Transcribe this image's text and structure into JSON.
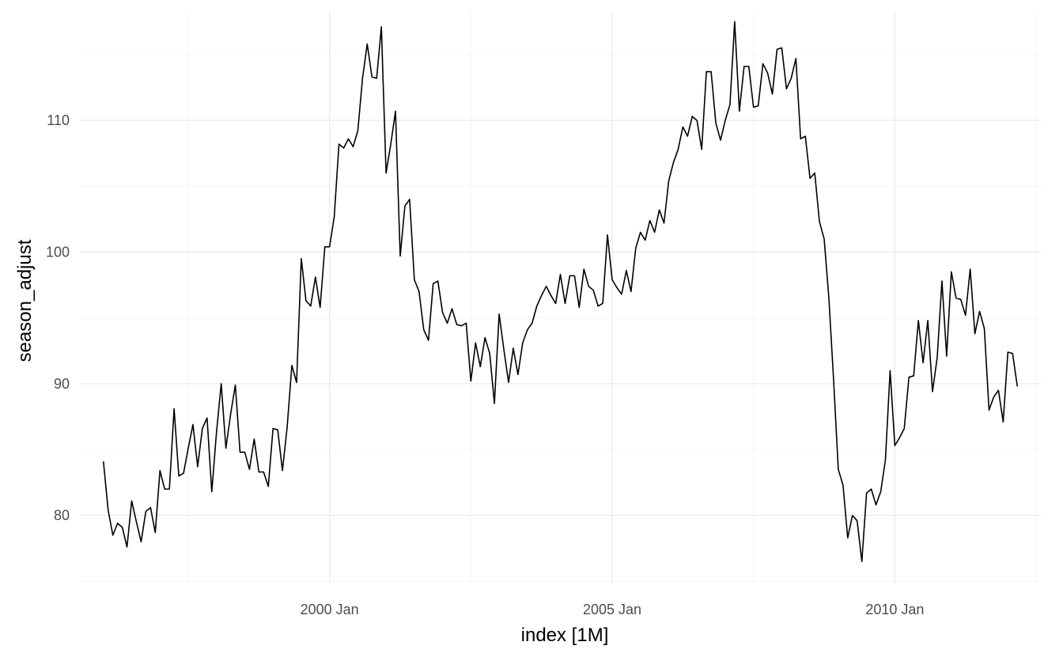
{
  "chart_data": {
    "type": "line",
    "title": "",
    "xlabel": "index [1M]",
    "ylabel": "season_adjust",
    "grid": true,
    "x_start": "1996 Jan",
    "x_end": "2012 Mar",
    "xlim": [
      "1995 Aug",
      "2012 Aug"
    ],
    "ylim": [
      74.9,
      118.3
    ],
    "x_ticks": [
      {
        "date": "2000 Jan",
        "label": "2000 Jan"
      },
      {
        "date": "2005 Jan",
        "label": "2005 Jan"
      },
      {
        "date": "2010 Jan",
        "label": "2010 Jan"
      }
    ],
    "y_ticks": [
      {
        "value": 80,
        "label": "80"
      },
      {
        "value": 90,
        "label": "90"
      },
      {
        "value": 100,
        "label": "100"
      },
      {
        "value": 110,
        "label": "110"
      }
    ],
    "series": [
      {
        "color": "#000000",
        "values": [
          84.1,
          80.4,
          78.5,
          79.4,
          79.1,
          77.6,
          81.1,
          79.5,
          78.0,
          80.3,
          80.6,
          78.7,
          83.4,
          82.0,
          82.0,
          88.1,
          83.0,
          83.2,
          85.1,
          86.9,
          83.7,
          86.6,
          87.4,
          81.8,
          86.3,
          90.0,
          85.1,
          87.7,
          89.9,
          84.8,
          84.8,
          83.5,
          85.8,
          83.3,
          83.3,
          82.2,
          86.6,
          86.5,
          83.4,
          86.7,
          91.4,
          90.1,
          99.5,
          96.3,
          95.9,
          98.1,
          95.8,
          100.4,
          100.4,
          102.7,
          108.2,
          107.9,
          108.6,
          108.0,
          109.2,
          113.2,
          115.8,
          113.3,
          113.2,
          117.1,
          106.0,
          108.2,
          110.7,
          99.7,
          103.5,
          104.0,
          97.9,
          97.0,
          94.1,
          93.3,
          97.6,
          97.8,
          95.4,
          94.6,
          95.7,
          94.5,
          94.4,
          94.6,
          90.2,
          93.1,
          91.3,
          93.5,
          92.3,
          88.5,
          95.3,
          92.6,
          90.1,
          92.7,
          90.7,
          93.1,
          94.1,
          94.6,
          95.9,
          96.7,
          97.4,
          96.7,
          96.1,
          98.3,
          96.1,
          98.2,
          98.2,
          95.8,
          98.7,
          97.4,
          97.1,
          95.9,
          96.1,
          101.3,
          97.9,
          97.3,
          96.8,
          98.6,
          97.0,
          100.3,
          101.5,
          100.9,
          102.4,
          101.5,
          103.2,
          102.2,
          105.4,
          106.8,
          107.8,
          109.5,
          108.8,
          110.3,
          110.0,
          107.8,
          113.7,
          113.7,
          109.8,
          108.5,
          110.0,
          111.2,
          117.5,
          110.7,
          114.1,
          114.1,
          111.0,
          111.1,
          114.3,
          113.6,
          112.0,
          115.4,
          115.5,
          112.4,
          113.2,
          114.7,
          108.6,
          108.8,
          105.6,
          106.0,
          102.3,
          101.0,
          96.5,
          90.3,
          83.5,
          82.3,
          78.3,
          80.0,
          79.6,
          76.5,
          81.7,
          82.0,
          80.8,
          81.8,
          84.2,
          91.0,
          85.3,
          85.9,
          86.6,
          90.5,
          90.6,
          94.8,
          91.6,
          94.8,
          89.4,
          92.0,
          97.8,
          92.1,
          98.5,
          96.5,
          96.4,
          95.2,
          98.7,
          93.8,
          95.5,
          94.2,
          88.0,
          89.0,
          89.5,
          87.1,
          92.4,
          92.3,
          89.8
        ]
      }
    ]
  }
}
